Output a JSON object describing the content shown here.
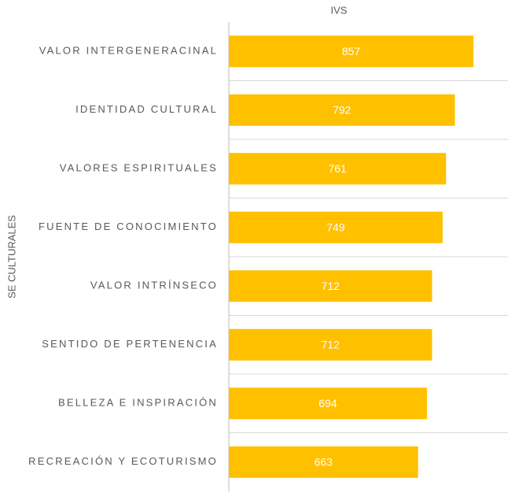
{
  "chart_data": {
    "type": "bar",
    "orientation": "horizontal",
    "title": "IVS",
    "y_label": "SE CULTURALES",
    "categories": [
      "VALOR INTERGENERACINAL",
      "IDENTIDAD CULTURAL",
      "VALORES ESPIRITUALES",
      "FUENTE DE CONOCIMIENTO",
      "VALOR INTRÍNSECO",
      "SENTIDO DE PERTENENCIA",
      "BELLEZA E INSPIRACIÓN",
      "RECREACIÓN Y ECOTURISMO"
    ],
    "values": [
      857,
      792,
      761,
      749,
      712,
      712,
      694,
      663
    ],
    "color": "#ffc000",
    "xlim": [
      0,
      1000
    ],
    "grid": true
  }
}
